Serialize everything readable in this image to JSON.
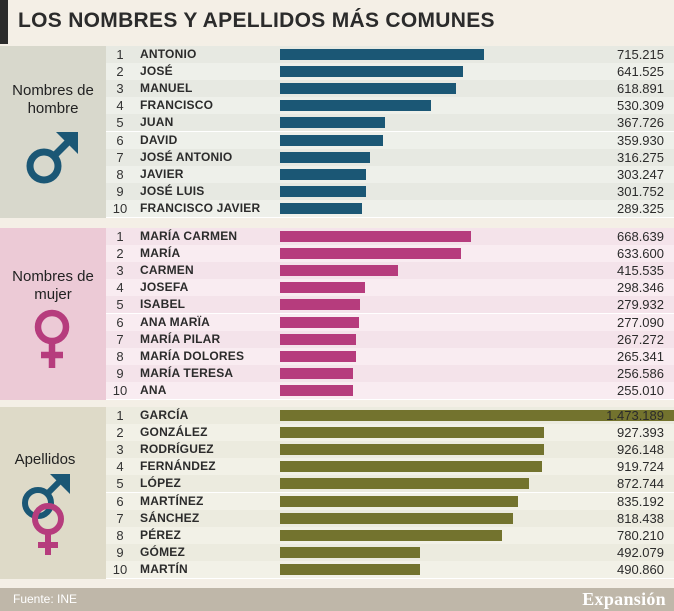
{
  "header": {
    "title": "LOS NOMBRES Y APELLIDOS MÁS COMUNES"
  },
  "footer": {
    "source": "Fuente: INE",
    "brand": "Expansión"
  },
  "colors": {
    "men": "#1b5775",
    "women": "#b63c7d",
    "surnames": "#73732e"
  },
  "chart_data": [
    {
      "type": "bar",
      "title": "Nombres de hombre",
      "categories": [
        "ANTONIO",
        "JOSÉ",
        "MANUEL",
        "FRANCISCO",
        "JUAN",
        "DAVID",
        "JOSÉ ANTONIO",
        "JAVIER",
        "JOSÉ LUIS",
        "FRANCISCO JAVIER"
      ],
      "ranks": [
        "1",
        "2",
        "3",
        "4",
        "5",
        "6",
        "7",
        "8",
        "9",
        "10"
      ],
      "values": [
        715215,
        641525,
        618891,
        530309,
        367726,
        359930,
        316275,
        303247,
        301752,
        289325
      ],
      "value_labels": [
        "715.215",
        "641.525",
        "618.891",
        "530.309",
        "367.726",
        "359.930",
        "316.275",
        "303.247",
        "301.752",
        "289.325"
      ]
    },
    {
      "type": "bar",
      "title": "Nombres de mujer",
      "categories": [
        "MARÍA CARMEN",
        "MARÍA",
        "CARMEN",
        "JOSEFA",
        "ISABEL",
        "ANA MARÏA",
        "MARÍA PILAR",
        "MARÍA DOLORES",
        "MARÍA TERESA",
        "ANA"
      ],
      "ranks": [
        "1",
        "2",
        "3",
        "4",
        "5",
        "6",
        "7",
        "8",
        "9",
        "10"
      ],
      "values": [
        668639,
        633600,
        415535,
        298346,
        279932,
        277090,
        267272,
        265341,
        256586,
        255010
      ],
      "value_labels": [
        "668.639",
        "633.600",
        "415.535",
        "298.346",
        "279.932",
        "277.090",
        "267.272",
        "265.341",
        "256.586",
        "255.010"
      ]
    },
    {
      "type": "bar",
      "title": "Apellidos",
      "categories": [
        "GARCÍA",
        "GONZÁLEZ",
        "RODRÍGUEZ",
        "FERNÁNDEZ",
        "LÓPEZ",
        "MARTÍNEZ",
        "SÁNCHEZ",
        "PÉREZ",
        "GÓMEZ",
        "MARTÍN"
      ],
      "ranks": [
        "1",
        "2",
        "3",
        "4",
        "5",
        "6",
        "7",
        "8",
        "9",
        "10"
      ],
      "values": [
        1473189,
        927393,
        926148,
        919724,
        872744,
        835192,
        818438,
        780210,
        492079,
        490860
      ],
      "value_labels": [
        "1.473.189",
        "927.393",
        "926.148",
        "919.724",
        "872.744",
        "835.192",
        "818.438",
        "780.210",
        "492.079",
        "490.860"
      ]
    }
  ]
}
